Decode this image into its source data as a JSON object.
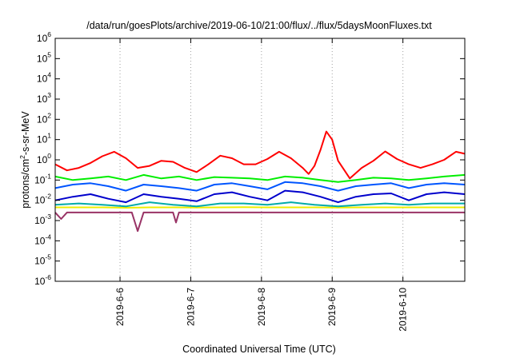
{
  "chart_data": {
    "type": "line",
    "title": "/data/run/goesPlots/archive/2019-06-10/21:00/flux/../flux/5daysMoonFluxes.txt",
    "xlabel": "Coordinated Universal Time (UTC)",
    "ylabel": "protons/cm²-s-sr-MeV",
    "ylabel_parts": {
      "base": "protons/cm",
      "sup": "2",
      "rest": "-s-sr-MeV"
    },
    "yscale": "log",
    "ylim": [
      1e-06,
      1000000.0
    ],
    "y_ticks": [
      {
        "base": "10",
        "exp": "-6",
        "value": 1e-06
      },
      {
        "base": "10",
        "exp": "-5",
        "value": 1e-05
      },
      {
        "base": "10",
        "exp": "-4",
        "value": 0.0001
      },
      {
        "base": "10",
        "exp": "-3",
        "value": 0.001
      },
      {
        "base": "10",
        "exp": "-2",
        "value": 0.01
      },
      {
        "base": "10",
        "exp": "-1",
        "value": 0.1
      },
      {
        "base": "10",
        "exp": "0",
        "value": 1
      },
      {
        "base": "10",
        "exp": "1",
        "value": 10
      },
      {
        "base": "10",
        "exp": "2",
        "value": 100
      },
      {
        "base": "10",
        "exp": "3",
        "value": 1000
      },
      {
        "base": "10",
        "exp": "4",
        "value": 10000
      },
      {
        "base": "10",
        "exp": "5",
        "value": 100000
      },
      {
        "base": "10",
        "exp": "6",
        "value": 1000000
      }
    ],
    "xlim": [
      "2019-06-05 02:00",
      "2019-06-10 21:00"
    ],
    "x_ticks": [
      {
        "label": "2019-6-6",
        "value": "2019-06-06 00:00"
      },
      {
        "label": "2019-6-7",
        "value": "2019-06-07 00:00"
      },
      {
        "label": "2019-6-8",
        "value": "2019-06-08 00:00"
      },
      {
        "label": "2019-6-9",
        "value": "2019-06-09 00:00"
      },
      {
        "label": "2019-6-10",
        "value": "2019-06-10 00:00"
      }
    ],
    "grid": "dotted vertical at day ticks",
    "legend": "none",
    "series": [
      {
        "color": "#ff0000",
        "x": [
          "2019-06-05 02:00",
          "2019-06-05 06:00",
          "2019-06-05 10:00",
          "2019-06-05 14:00",
          "2019-06-05 18:00",
          "2019-06-05 22:00",
          "2019-06-06 02:00",
          "2019-06-06 06:00",
          "2019-06-06 10:00",
          "2019-06-06 14:00",
          "2019-06-06 18:00",
          "2019-06-06 22:00",
          "2019-06-07 02:00",
          "2019-06-07 06:00",
          "2019-06-07 10:00",
          "2019-06-07 14:00",
          "2019-06-07 18:00",
          "2019-06-07 22:00",
          "2019-06-08 02:00",
          "2019-06-08 06:00",
          "2019-06-08 10:00",
          "2019-06-08 14:00",
          "2019-06-08 16:00",
          "2019-06-08 18:00",
          "2019-06-08 20:00",
          "2019-06-08 22:00",
          "2019-06-09 00:00",
          "2019-06-09 02:00",
          "2019-06-09 06:00",
          "2019-06-09 10:00",
          "2019-06-09 14:00",
          "2019-06-09 18:00",
          "2019-06-09 22:00",
          "2019-06-10 02:00",
          "2019-06-10 06:00",
          "2019-06-10 10:00",
          "2019-06-10 14:00",
          "2019-06-10 18:00",
          "2019-06-10 21:00"
        ],
        "y": [
          0.6,
          0.3,
          0.4,
          0.7,
          1.5,
          2.5,
          1.2,
          0.4,
          0.5,
          0.9,
          0.8,
          0.4,
          0.25,
          0.6,
          1.6,
          1.2,
          0.6,
          0.6,
          1.1,
          2.5,
          1.2,
          0.4,
          0.2,
          0.5,
          3,
          25,
          10,
          0.9,
          0.12,
          0.4,
          0.9,
          2.6,
          1.1,
          0.6,
          0.4,
          0.6,
          1.0,
          2.5,
          2.0
        ]
      },
      {
        "color": "#00ee00",
        "x": [
          "2019-06-05 02:00",
          "2019-06-05 08:00",
          "2019-06-05 14:00",
          "2019-06-05 20:00",
          "2019-06-06 02:00",
          "2019-06-06 08:00",
          "2019-06-06 14:00",
          "2019-06-06 20:00",
          "2019-06-07 02:00",
          "2019-06-07 08:00",
          "2019-06-07 14:00",
          "2019-06-07 20:00",
          "2019-06-08 02:00",
          "2019-06-08 08:00",
          "2019-06-08 14:00",
          "2019-06-08 20:00",
          "2019-06-09 02:00",
          "2019-06-09 08:00",
          "2019-06-09 14:00",
          "2019-06-09 20:00",
          "2019-06-10 02:00",
          "2019-06-10 08:00",
          "2019-06-10 14:00",
          "2019-06-10 21:00"
        ],
        "y": [
          0.15,
          0.1,
          0.12,
          0.15,
          0.1,
          0.18,
          0.12,
          0.15,
          0.1,
          0.14,
          0.13,
          0.12,
          0.1,
          0.15,
          0.13,
          0.1,
          0.08,
          0.1,
          0.13,
          0.12,
          0.1,
          0.12,
          0.15,
          0.18
        ]
      },
      {
        "color": "#0055ff",
        "x": [
          "2019-06-05 02:00",
          "2019-06-05 08:00",
          "2019-06-05 14:00",
          "2019-06-05 20:00",
          "2019-06-06 02:00",
          "2019-06-06 08:00",
          "2019-06-06 14:00",
          "2019-06-06 20:00",
          "2019-06-07 02:00",
          "2019-06-07 08:00",
          "2019-06-07 14:00",
          "2019-06-07 20:00",
          "2019-06-08 02:00",
          "2019-06-08 08:00",
          "2019-06-08 14:00",
          "2019-06-08 20:00",
          "2019-06-09 02:00",
          "2019-06-09 08:00",
          "2019-06-09 14:00",
          "2019-06-09 20:00",
          "2019-06-10 02:00",
          "2019-06-10 08:00",
          "2019-06-10 14:00",
          "2019-06-10 21:00"
        ],
        "y": [
          0.04,
          0.06,
          0.07,
          0.05,
          0.03,
          0.06,
          0.05,
          0.04,
          0.03,
          0.06,
          0.07,
          0.05,
          0.035,
          0.08,
          0.07,
          0.05,
          0.03,
          0.05,
          0.06,
          0.07,
          0.04,
          0.06,
          0.07,
          0.06
        ]
      },
      {
        "color": "#0000cc",
        "x": [
          "2019-06-05 02:00",
          "2019-06-05 08:00",
          "2019-06-05 14:00",
          "2019-06-05 20:00",
          "2019-06-06 02:00",
          "2019-06-06 08:00",
          "2019-06-06 14:00",
          "2019-06-06 20:00",
          "2019-06-07 02:00",
          "2019-06-07 08:00",
          "2019-06-07 14:00",
          "2019-06-07 20:00",
          "2019-06-08 02:00",
          "2019-06-08 08:00",
          "2019-06-08 14:00",
          "2019-06-08 20:00",
          "2019-06-09 02:00",
          "2019-06-09 08:00",
          "2019-06-09 14:00",
          "2019-06-09 20:00",
          "2019-06-10 02:00",
          "2019-06-10 08:00",
          "2019-06-10 14:00",
          "2019-06-10 21:00"
        ],
        "y": [
          0.01,
          0.015,
          0.02,
          0.012,
          0.008,
          0.02,
          0.015,
          0.012,
          0.009,
          0.02,
          0.025,
          0.015,
          0.01,
          0.03,
          0.025,
          0.015,
          0.008,
          0.015,
          0.02,
          0.022,
          0.01,
          0.02,
          0.025,
          0.02
        ]
      },
      {
        "color": "#00aaaa",
        "x": [
          "2019-06-05 02:00",
          "2019-06-05 10:00",
          "2019-06-05 18:00",
          "2019-06-06 02:00",
          "2019-06-06 10:00",
          "2019-06-06 18:00",
          "2019-06-07 02:00",
          "2019-06-07 10:00",
          "2019-06-07 18:00",
          "2019-06-08 02:00",
          "2019-06-08 10:00",
          "2019-06-08 18:00",
          "2019-06-09 02:00",
          "2019-06-09 10:00",
          "2019-06-09 18:00",
          "2019-06-10 02:00",
          "2019-06-10 10:00",
          "2019-06-10 21:00"
        ],
        "y": [
          0.006,
          0.007,
          0.006,
          0.005,
          0.008,
          0.006,
          0.005,
          0.007,
          0.007,
          0.006,
          0.008,
          0.006,
          0.005,
          0.006,
          0.007,
          0.006,
          0.007,
          0.007
        ]
      },
      {
        "color": "#eeee00",
        "x": [
          "2019-06-05 02:00",
          "2019-06-05 10:00",
          "2019-06-05 18:00",
          "2019-06-06 02:00",
          "2019-06-06 10:00",
          "2019-06-06 18:00",
          "2019-06-07 02:00",
          "2019-06-07 10:00",
          "2019-06-07 18:00",
          "2019-06-08 02:00",
          "2019-06-08 10:00",
          "2019-06-08 18:00",
          "2019-06-09 02:00",
          "2019-06-09 10:00",
          "2019-06-09 18:00",
          "2019-06-10 02:00",
          "2019-06-10 10:00",
          "2019-06-10 21:00"
        ],
        "y": [
          0.0045,
          0.0045,
          0.0045,
          0.0043,
          0.0045,
          0.0045,
          0.0044,
          0.0045,
          0.0046,
          0.0045,
          0.0045,
          0.0045,
          0.0044,
          0.0045,
          0.0045,
          0.0045,
          0.0045,
          0.0045
        ]
      },
      {
        "color": "#993366",
        "x": [
          "2019-06-05 02:00",
          "2019-06-05 04:00",
          "2019-06-05 06:00",
          "2019-06-05 10:00",
          "2019-06-05 16:00",
          "2019-06-05 22:00",
          "2019-06-06 04:00",
          "2019-06-06 06:00",
          "2019-06-06 08:00",
          "2019-06-06 14:00",
          "2019-06-06 18:00",
          "2019-06-06 19:00",
          "2019-06-06 20:00",
          "2019-06-07 02:00",
          "2019-06-07 08:00",
          "2019-06-07 14:00",
          "2019-06-07 20:00",
          "2019-06-08 02:00",
          "2019-06-08 08:00",
          "2019-06-08 14:00",
          "2019-06-08 20:00",
          "2019-06-09 02:00",
          "2019-06-09 08:00",
          "2019-06-09 14:00",
          "2019-06-09 20:00",
          "2019-06-10 02:00",
          "2019-06-10 08:00",
          "2019-06-10 14:00",
          "2019-06-10 21:00"
        ],
        "y": [
          0.0025,
          0.0012,
          0.0025,
          0.0025,
          0.0025,
          0.0025,
          0.0025,
          0.0003,
          0.0025,
          0.0025,
          0.0025,
          0.0008,
          0.0025,
          0.0025,
          0.0025,
          0.0025,
          0.0025,
          0.0025,
          0.0025,
          0.0025,
          0.0025,
          0.0025,
          0.0025,
          0.0025,
          0.0025,
          0.0025,
          0.0025,
          0.0025,
          0.0025
        ]
      }
    ]
  }
}
